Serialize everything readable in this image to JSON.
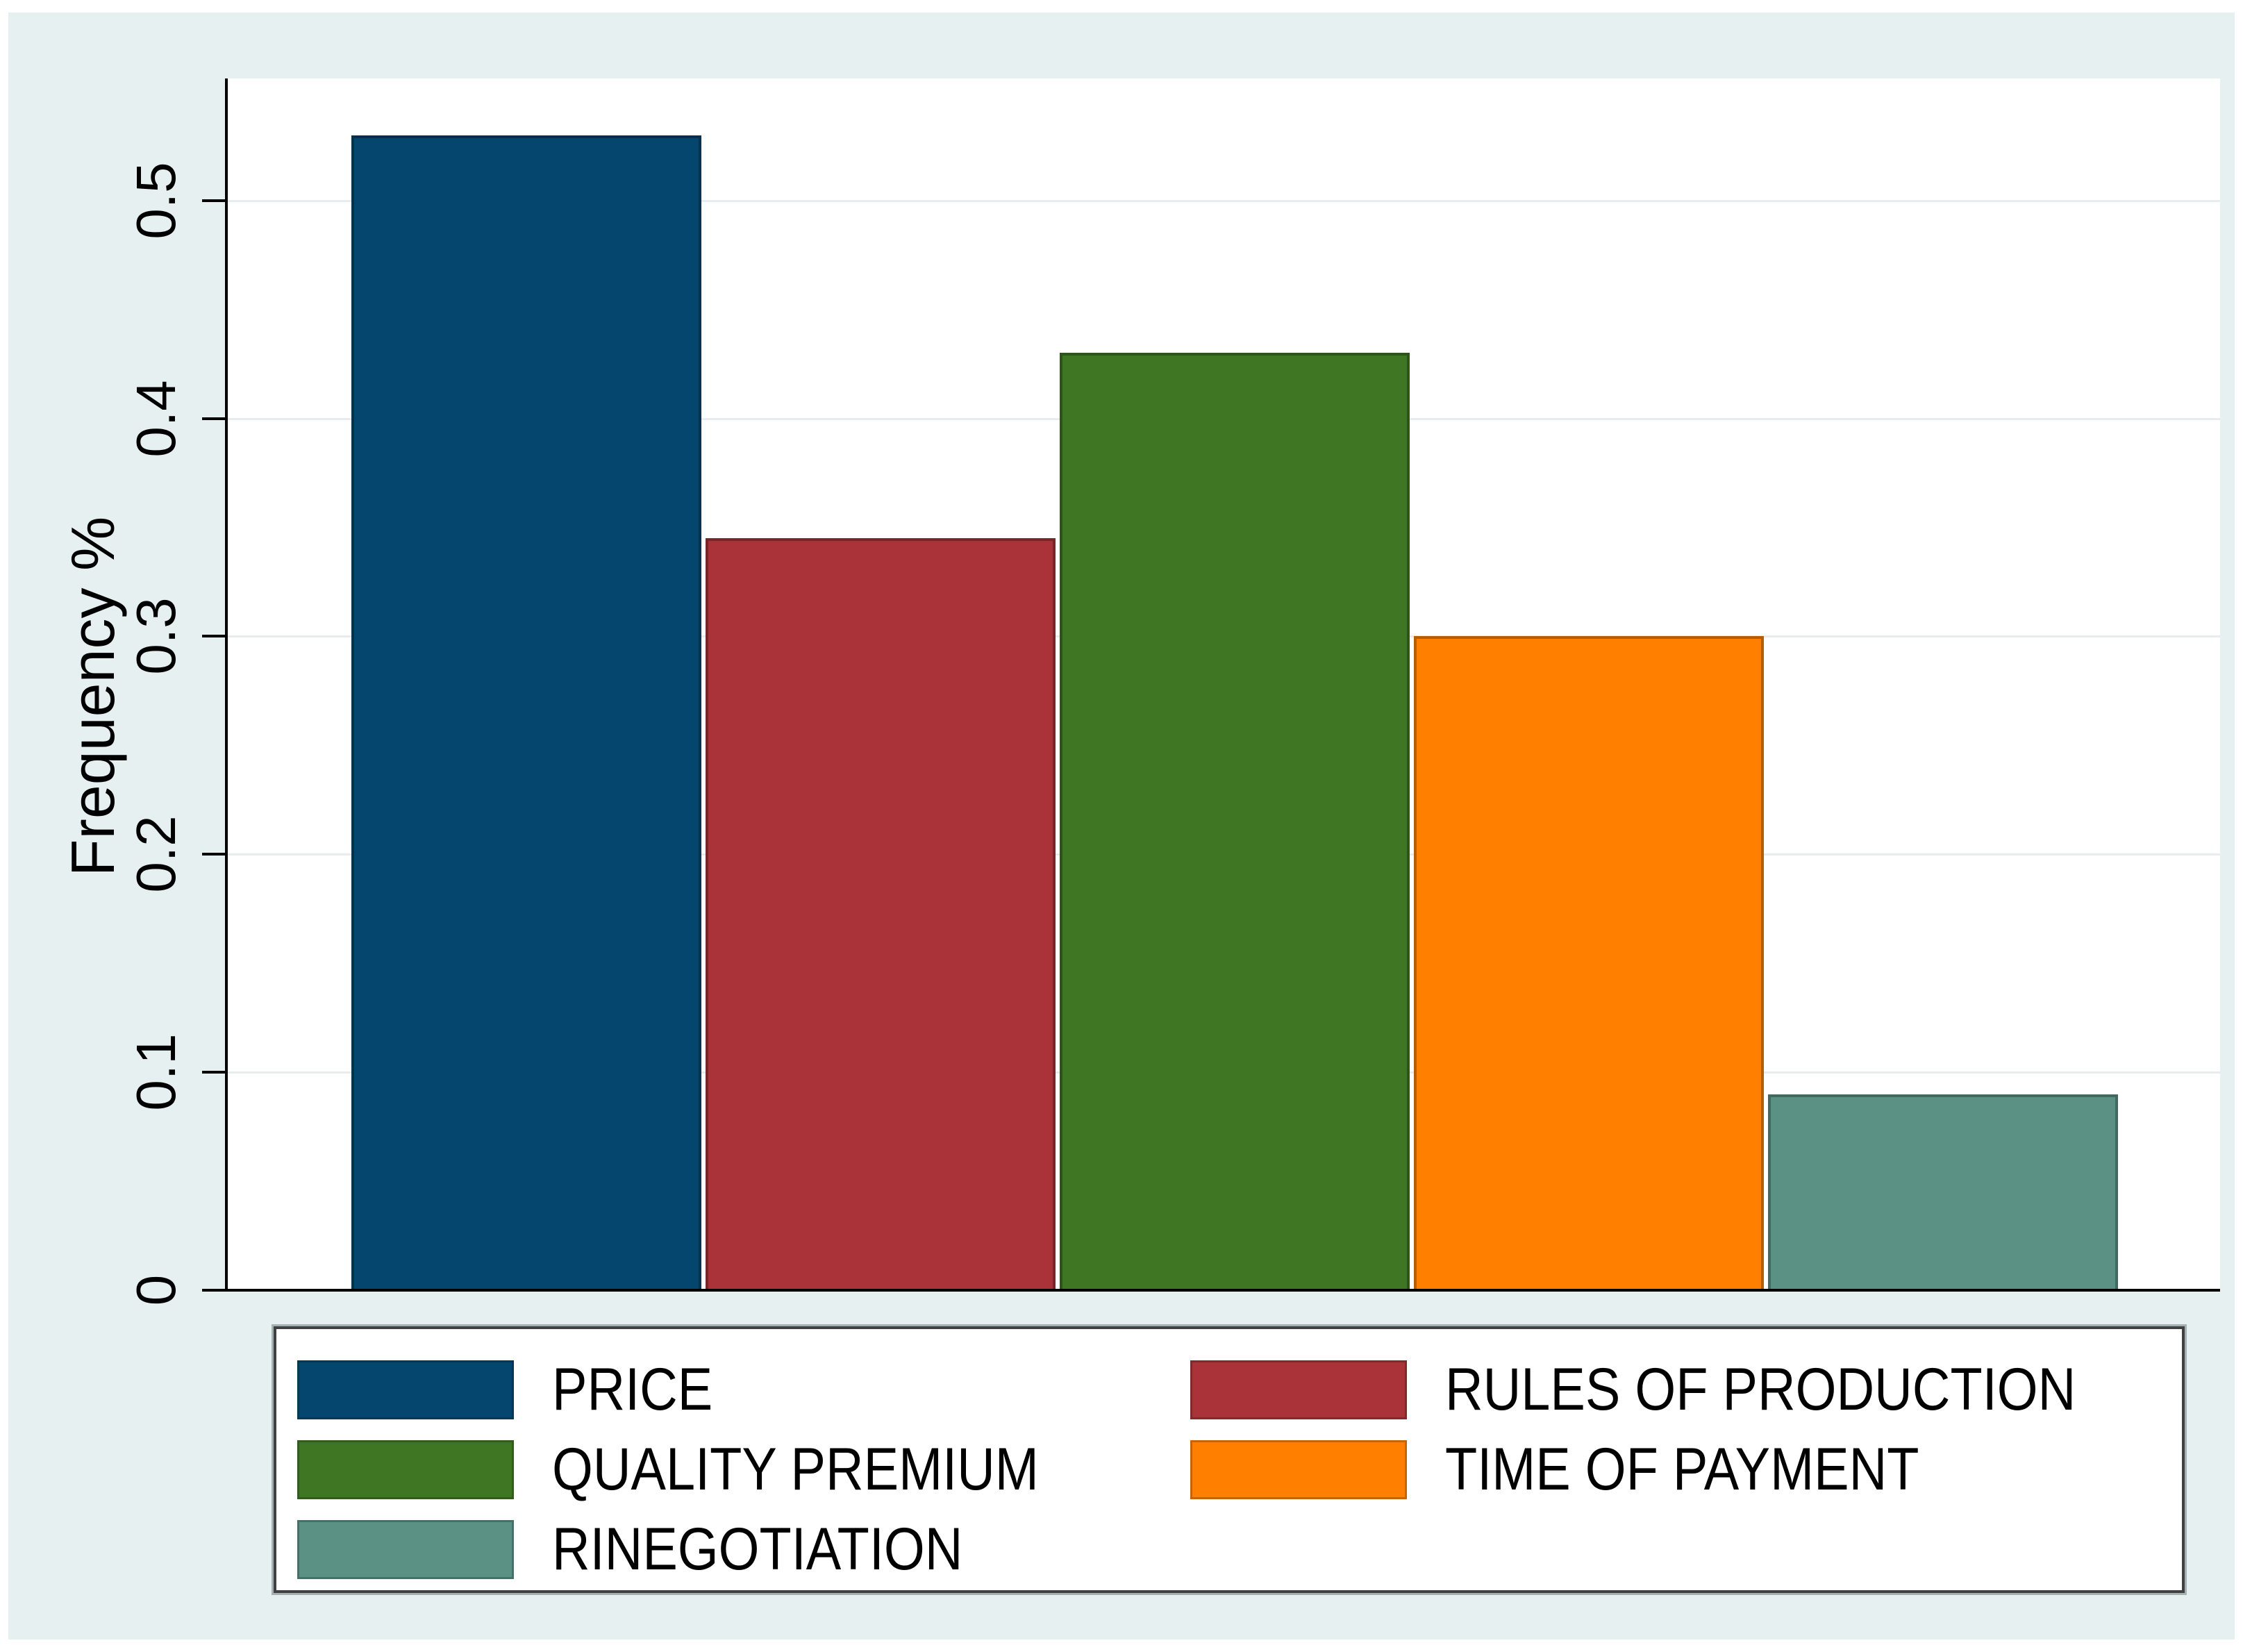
{
  "figure": {
    "background_color": "#e7f0f1",
    "plot_background": "#ffffff",
    "axis_color": "#000000",
    "gridline_color": "#e9ecec"
  },
  "chart_data": {
    "type": "bar",
    "title": "",
    "xlabel": "",
    "ylabel": "Frequency %",
    "categories": [
      "PRICE",
      "RULES OF PRODUCTION",
      "QUALITY PREMIUM",
      "TIME OF PAYMENT",
      "RINEGOTIATION"
    ],
    "values": [
      0.53,
      0.345,
      0.43,
      0.3,
      0.09
    ],
    "colors": [
      "#04466e",
      "#a93339",
      "#3f7623",
      "#ff8000",
      "#5b9085"
    ],
    "ylim": [
      0,
      0.556
    ],
    "ytick_values": [
      0,
      0.1,
      0.2,
      0.3,
      0.4,
      0.5
    ],
    "ytick_labels": [
      "0",
      "0.1",
      "0.2",
      "0.3",
      "0.4",
      "0.5"
    ],
    "grid": true,
    "legend": {
      "position": "bottom",
      "columns": 2
    }
  }
}
